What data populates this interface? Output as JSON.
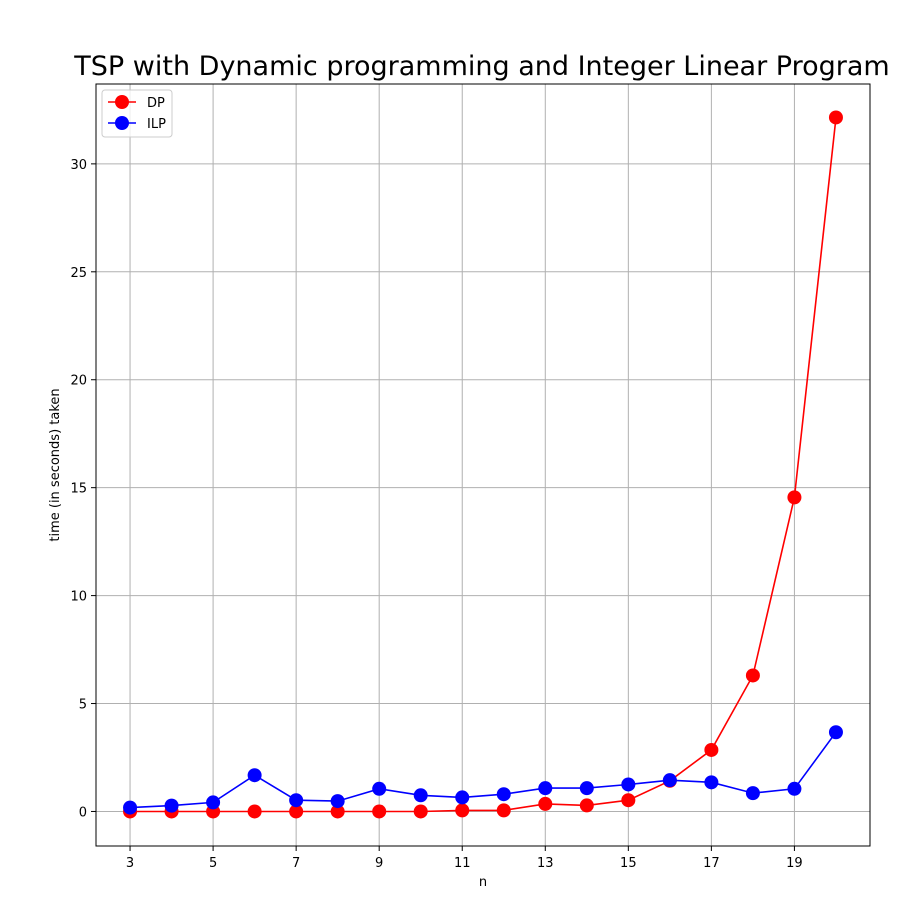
{
  "chart_data": {
    "type": "line",
    "title": "TSP with Dynamic programming and Integer Linear Program",
    "xlabel": "n",
    "ylabel": "time (in seconds) taken",
    "x": [
      3,
      4,
      5,
      6,
      7,
      8,
      9,
      10,
      11,
      12,
      13,
      14,
      15,
      16,
      17,
      18,
      19,
      20
    ],
    "xticks": [
      3,
      5,
      7,
      9,
      11,
      13,
      15,
      17,
      19
    ],
    "yticks": [
      0,
      5,
      10,
      15,
      20,
      25,
      30
    ],
    "xlim": [
      2.18,
      20.82
    ],
    "ylim": [
      -1.6,
      33.7
    ],
    "grid": true,
    "legend_position": "top-left",
    "series": [
      {
        "name": "DP",
        "color": "#ff0000",
        "marker": "circle",
        "values": [
          0.0,
          0.0,
          0.0,
          0.0,
          0.0,
          0.0,
          0.0,
          0.0,
          0.05,
          0.05,
          0.35,
          0.28,
          0.52,
          1.42,
          2.85,
          6.3,
          14.55,
          32.15
        ]
      },
      {
        "name": "ILP",
        "color": "#0000ff",
        "marker": "circle",
        "values": [
          0.18,
          0.27,
          0.42,
          1.68,
          0.52,
          0.48,
          1.05,
          0.75,
          0.65,
          0.8,
          1.08,
          1.08,
          1.25,
          1.45,
          1.35,
          0.85,
          1.05,
          3.67
        ]
      }
    ]
  }
}
